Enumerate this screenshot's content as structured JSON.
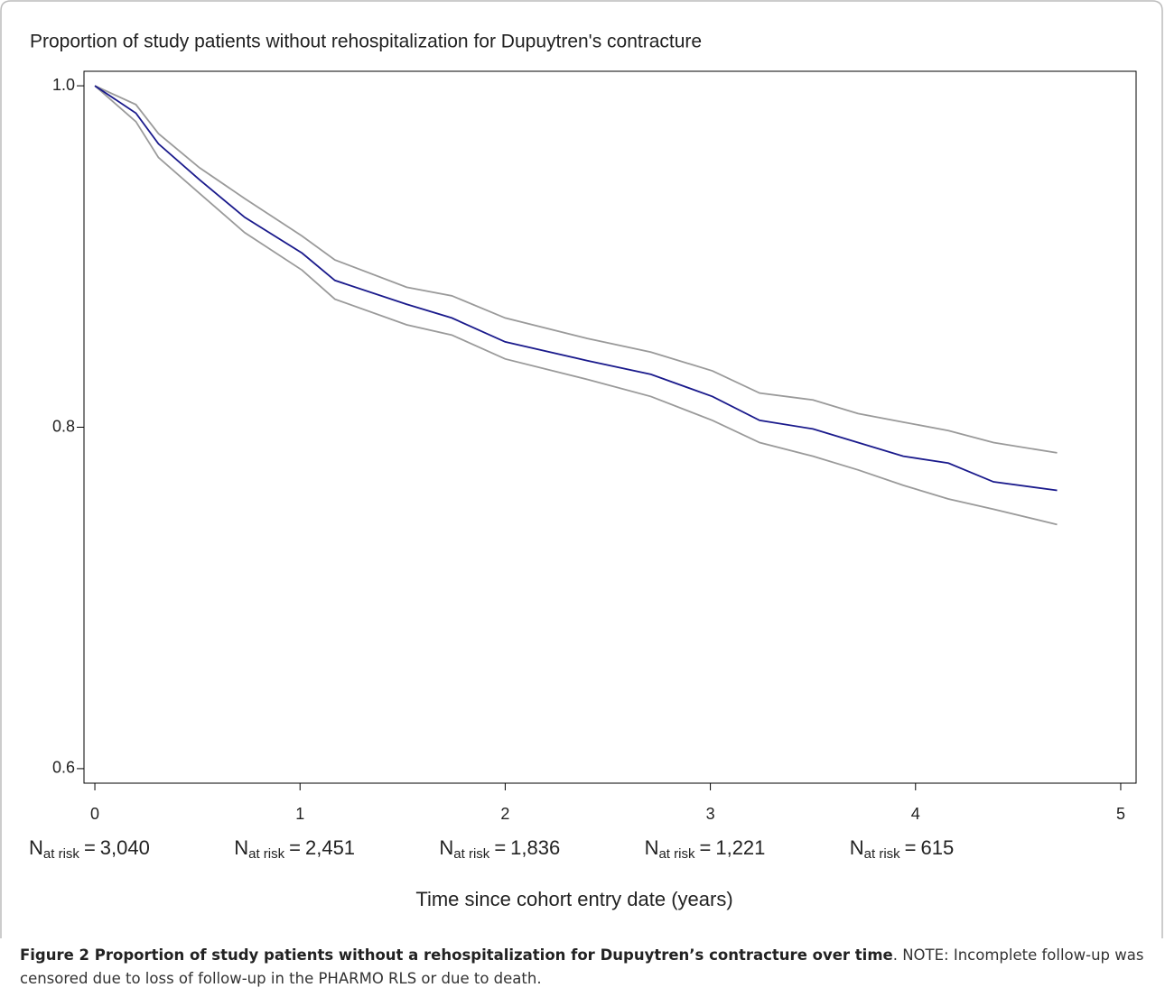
{
  "chart_data": {
    "type": "line",
    "title": "Proportion of study patients without rehospitalization for Dupuytren's contracture",
    "x_label": "Time since cohort entry date (years)",
    "x": [
      0,
      0.2,
      0.31,
      0.51,
      0.73,
      1.01,
      1.17,
      1.52,
      1.74,
      2.0,
      2.4,
      2.71,
      3.01,
      3.24,
      3.5,
      3.72,
      3.94,
      4.16,
      4.38,
      4.69
    ],
    "series": [
      {
        "color": "#9a9a9a",
        "values": [
          1.0,
          0.989,
          0.972,
          0.952,
          0.934,
          0.912,
          0.898,
          0.882,
          0.877,
          0.864,
          0.852,
          0.844,
          0.833,
          0.82,
          0.816,
          0.808,
          0.803,
          0.798,
          0.791,
          0.785
        ]
      },
      {
        "color": "#9a9a9a",
        "values": [
          1.0,
          0.979,
          0.958,
          0.937,
          0.914,
          0.892,
          0.875,
          0.86,
          0.854,
          0.84,
          0.828,
          0.818,
          0.804,
          0.791,
          0.783,
          0.775,
          0.766,
          0.758,
          0.752,
          0.743
        ]
      },
      {
        "color": "#1a1a8c",
        "values": [
          1.0,
          0.984,
          0.966,
          0.945,
          0.923,
          0.902,
          0.886,
          0.872,
          0.864,
          0.85,
          0.839,
          0.831,
          0.818,
          0.804,
          0.799,
          0.791,
          0.783,
          0.779,
          0.768,
          0.763
        ]
      }
    ],
    "xlim": [
      -0.053,
      5.075
    ],
    "ylim": [
      0.5915,
      1.0085
    ],
    "xticks": [
      0,
      1,
      2,
      3,
      4,
      5
    ],
    "yticks": [
      {
        "value": 1,
        "label": "1.0"
      },
      0.8,
      0.6
    ],
    "at_risk_symbol": "N",
    "at_risk_subscript": "at risk",
    "at_risk_equals": "=",
    "at_risk_values": [
      3040,
      2451,
      1836,
      1221,
      615
    ],
    "at_risk_value_labels": [
      "3,040",
      "2,451",
      "1,836",
      "1,221",
      "615"
    ]
  },
  "caption": {
    "bold": "Figure 2 Proportion of study patients without a rehospitalization for Dupuytren’s contracture over time",
    "text": ". NOTE: Incomplete follow-up was censored due to loss of follow-up in the PHARMO RLS or due to death."
  }
}
